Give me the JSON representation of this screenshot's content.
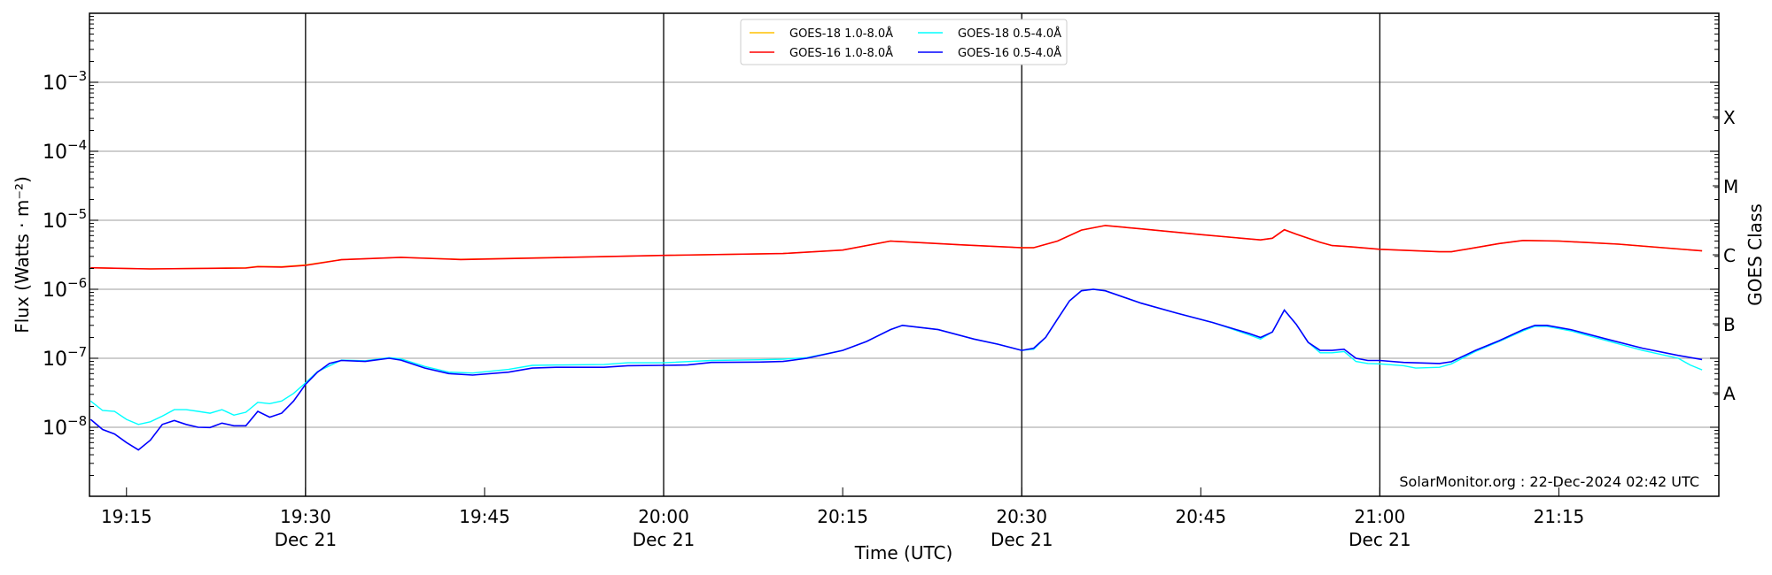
{
  "chart_data": {
    "type": "line",
    "title": "",
    "xlabel": "Time (UTC)",
    "ylabel": "Flux (Watts · m⁻²)",
    "ylabel_right": "GOES Class",
    "ylim": [
      1e-09,
      0.01
    ],
    "yscale": "log",
    "xlim": [
      "19:12",
      "21:28"
    ],
    "grid": "horizontal at decades",
    "legend_position": "top-center",
    "y_tick_labels": [
      {
        "value": 1e-08,
        "base": "10",
        "exp": "−8"
      },
      {
        "value": 1e-07,
        "base": "10",
        "exp": "−7"
      },
      {
        "value": 1e-06,
        "base": "10",
        "exp": "−6"
      },
      {
        "value": 1e-05,
        "base": "10",
        "exp": "−5"
      },
      {
        "value": 0.0001,
        "base": "10",
        "exp": "−4"
      },
      {
        "value": 0.001,
        "base": "10",
        "exp": "−3"
      }
    ],
    "x_ticks": [
      {
        "time": "19:15",
        "label": "19:15",
        "date": ""
      },
      {
        "time": "19:30",
        "label": "19:30",
        "date": "Dec 21"
      },
      {
        "time": "19:45",
        "label": "19:45",
        "date": ""
      },
      {
        "time": "20:00",
        "label": "20:00",
        "date": "Dec 21"
      },
      {
        "time": "20:15",
        "label": "20:15",
        "date": ""
      },
      {
        "time": "20:30",
        "label": "20:30",
        "date": "Dec 21"
      },
      {
        "time": "20:45",
        "label": "20:45",
        "date": ""
      },
      {
        "time": "21:00",
        "label": "21:00",
        "date": "Dec 21"
      },
      {
        "time": "21:15",
        "label": "21:15",
        "date": ""
      }
    ],
    "class_labels": [
      {
        "label": "X",
        "value": 0.000316
      },
      {
        "label": "M",
        "value": 3.16e-05
      },
      {
        "label": "C",
        "value": 3.16e-06
      },
      {
        "label": "B",
        "value": 3.16e-07
      },
      {
        "label": "A",
        "value": 3.16e-08
      }
    ],
    "series": [
      {
        "name": "GOES-18 1.0-8.0Å",
        "color": "#ffc000",
        "points": [
          [
            "19:12",
            2.05e-06
          ],
          [
            "19:17",
            1.98e-06
          ],
          [
            "19:25",
            2.05e-06
          ],
          [
            "19:26",
            2.15e-06
          ],
          [
            "19:28",
            2.12e-06
          ],
          [
            "19:30",
            2.25e-06
          ],
          [
            "19:33",
            2.7e-06
          ],
          [
            "19:38",
            2.9e-06
          ],
          [
            "19:43",
            2.72e-06
          ],
          [
            "20:00",
            3.1e-06
          ],
          [
            "20:10",
            3.3e-06
          ],
          [
            "20:15",
            3.7e-06
          ],
          [
            "20:19",
            5e-06
          ],
          [
            "20:25",
            4.4e-06
          ],
          [
            "20:30",
            4e-06
          ],
          [
            "20:31",
            4e-06
          ],
          [
            "20:33",
            5e-06
          ],
          [
            "20:35",
            7.2e-06
          ],
          [
            "20:37",
            8.4e-06
          ],
          [
            "20:40",
            7.5e-06
          ],
          [
            "20:45",
            6.2e-06
          ],
          [
            "20:50",
            5.2e-06
          ],
          [
            "20:51",
            5.5e-06
          ],
          [
            "20:52",
            7.3e-06
          ],
          [
            "20:53",
            6.3e-06
          ],
          [
            "20:55",
            4.8e-06
          ],
          [
            "20:56",
            4.3e-06
          ],
          [
            "20:57",
            4.2e-06
          ],
          [
            "21:00",
            3.8e-06
          ],
          [
            "21:05",
            3.5e-06
          ],
          [
            "21:06",
            3.5e-06
          ],
          [
            "21:10",
            4.6e-06
          ],
          [
            "21:12",
            5.1e-06
          ],
          [
            "21:15",
            5e-06
          ],
          [
            "21:20",
            4.5e-06
          ],
          [
            "21:27",
            3.6e-06
          ]
        ]
      },
      {
        "name": "GOES-16 1.0-8.0Å",
        "color": "#ff0000",
        "points": [
          [
            "19:12",
            2.05e-06
          ],
          [
            "19:17",
            1.97e-06
          ],
          [
            "19:25",
            2.03e-06
          ],
          [
            "19:26",
            2.12e-06
          ],
          [
            "19:28",
            2.1e-06
          ],
          [
            "19:30",
            2.22e-06
          ],
          [
            "19:33",
            2.68e-06
          ],
          [
            "19:38",
            2.9e-06
          ],
          [
            "19:43",
            2.7e-06
          ],
          [
            "20:00",
            3.1e-06
          ],
          [
            "20:10",
            3.3e-06
          ],
          [
            "20:15",
            3.7e-06
          ],
          [
            "20:19",
            5e-06
          ],
          [
            "20:25",
            4.4e-06
          ],
          [
            "20:30",
            4e-06
          ],
          [
            "20:31",
            4e-06
          ],
          [
            "20:33",
            5e-06
          ],
          [
            "20:35",
            7.2e-06
          ],
          [
            "20:37",
            8.4e-06
          ],
          [
            "20:40",
            7.5e-06
          ],
          [
            "20:45",
            6.2e-06
          ],
          [
            "20:50",
            5.2e-06
          ],
          [
            "20:51",
            5.5e-06
          ],
          [
            "20:52",
            7.3e-06
          ],
          [
            "20:53",
            6.3e-06
          ],
          [
            "20:55",
            4.8e-06
          ],
          [
            "20:56",
            4.3e-06
          ],
          [
            "20:57",
            4.2e-06
          ],
          [
            "21:00",
            3.8e-06
          ],
          [
            "21:05",
            3.5e-06
          ],
          [
            "21:06",
            3.5e-06
          ],
          [
            "21:10",
            4.6e-06
          ],
          [
            "21:12",
            5.1e-06
          ],
          [
            "21:15",
            5e-06
          ],
          [
            "21:20",
            4.5e-06
          ],
          [
            "21:27",
            3.6e-06
          ]
        ]
      },
      {
        "name": "GOES-18 0.5-4.0Å",
        "color": "#00ffff",
        "points": [
          [
            "19:12",
            2.4e-08
          ],
          [
            "19:13",
            1.75e-08
          ],
          [
            "19:14",
            1.7e-08
          ],
          [
            "19:15",
            1.3e-08
          ],
          [
            "19:16",
            1.1e-08
          ],
          [
            "19:17",
            1.2e-08
          ],
          [
            "19:18",
            1.45e-08
          ],
          [
            "19:19",
            1.8e-08
          ],
          [
            "19:20",
            1.8e-08
          ],
          [
            "19:21",
            1.7e-08
          ],
          [
            "19:22",
            1.6e-08
          ],
          [
            "19:23",
            1.8e-08
          ],
          [
            "19:24",
            1.5e-08
          ],
          [
            "19:25",
            1.65e-08
          ],
          [
            "19:26",
            2.3e-08
          ],
          [
            "19:27",
            2.2e-08
          ],
          [
            "19:28",
            2.4e-08
          ],
          [
            "19:29",
            3.1e-08
          ],
          [
            "19:30",
            4.4e-08
          ],
          [
            "19:31",
            6.4e-08
          ],
          [
            "19:33",
            9.4e-08
          ],
          [
            "19:35",
            9.2e-08
          ],
          [
            "19:37",
            1.02e-07
          ],
          [
            "19:38",
            9.8e-08
          ],
          [
            "19:40",
            7.6e-08
          ],
          [
            "19:42",
            6.3e-08
          ],
          [
            "19:44",
            6.1e-08
          ],
          [
            "19:47",
            6.9e-08
          ],
          [
            "19:49",
            7.9e-08
          ],
          [
            "19:51",
            8e-08
          ],
          [
            "19:55",
            8.1e-08
          ],
          [
            "19:57",
            8.6e-08
          ],
          [
            "20:00",
            8.6e-08
          ],
          [
            "20:04",
            9.3e-08
          ],
          [
            "20:08",
            9.5e-08
          ],
          [
            "20:10",
            9.7e-08
          ],
          [
            "20:12",
            1.02e-07
          ],
          [
            "20:15",
            1.3e-07
          ],
          [
            "20:17",
            1.75e-07
          ],
          [
            "20:19",
            2.6e-07
          ],
          [
            "20:20",
            3e-07
          ],
          [
            "20:23",
            2.6e-07
          ],
          [
            "20:26",
            1.9e-07
          ],
          [
            "20:28",
            1.6e-07
          ],
          [
            "20:30",
            1.3e-07
          ],
          [
            "20:31",
            1.35e-07
          ],
          [
            "20:32",
            2e-07
          ],
          [
            "20:33",
            3.7e-07
          ],
          [
            "20:34",
            6.8e-07
          ],
          [
            "20:35",
            9.5e-07
          ],
          [
            "20:36",
            1e-06
          ],
          [
            "20:37",
            9.5e-07
          ],
          [
            "20:40",
            6.3e-07
          ],
          [
            "20:43",
            4.5e-07
          ],
          [
            "20:46",
            3.3e-07
          ],
          [
            "20:49",
            2.2e-07
          ],
          [
            "20:50",
            1.9e-07
          ],
          [
            "20:51",
            2.4e-07
          ],
          [
            "20:52",
            5e-07
          ],
          [
            "20:53",
            3.1e-07
          ],
          [
            "20:54",
            1.7e-07
          ],
          [
            "20:55",
            1.2e-07
          ],
          [
            "20:56",
            1.2e-07
          ],
          [
            "20:57",
            1.25e-07
          ],
          [
            "20:58",
            9e-08
          ],
          [
            "20:59",
            8.4e-08
          ],
          [
            "21:00",
            8.3e-08
          ],
          [
            "21:02",
            7.8e-08
          ],
          [
            "21:03",
            7.2e-08
          ],
          [
            "21:05",
            7.4e-08
          ],
          [
            "21:06",
            8.3e-08
          ],
          [
            "21:08",
            1.25e-07
          ],
          [
            "21:10",
            1.75e-07
          ],
          [
            "21:12",
            2.5e-07
          ],
          [
            "21:13",
            2.9e-07
          ],
          [
            "21:14",
            2.9e-07
          ],
          [
            "21:16",
            2.5e-07
          ],
          [
            "21:19",
            1.8e-07
          ],
          [
            "21:22",
            1.3e-07
          ],
          [
            "21:25",
            1e-07
          ],
          [
            "21:26",
            8e-08
          ],
          [
            "21:27",
            6.8e-08
          ]
        ]
      },
      {
        "name": "GOES-16 0.5-4.0Å",
        "color": "#0000ff",
        "points": [
          [
            "19:12",
            1.3e-08
          ],
          [
            "19:13",
            9.3e-09
          ],
          [
            "19:14",
            8e-09
          ],
          [
            "19:15",
            6e-09
          ],
          [
            "19:16",
            4.7e-09
          ],
          [
            "19:17",
            6.5e-09
          ],
          [
            "19:18",
            1.1e-08
          ],
          [
            "19:19",
            1.25e-08
          ],
          [
            "19:20",
            1.1e-08
          ],
          [
            "19:21",
            1e-08
          ],
          [
            "19:22",
            9.9e-09
          ],
          [
            "19:23",
            1.15e-08
          ],
          [
            "19:24",
            1.05e-08
          ],
          [
            "19:25",
            1.05e-08
          ],
          [
            "19:26",
            1.7e-08
          ],
          [
            "19:27",
            1.4e-08
          ],
          [
            "19:28",
            1.6e-08
          ],
          [
            "19:29",
            2.4e-08
          ],
          [
            "19:30",
            4.2e-08
          ],
          [
            "19:31",
            6.3e-08
          ],
          [
            "19:32",
            8.4e-08
          ],
          [
            "19:33",
            9.3e-08
          ],
          [
            "19:35",
            9e-08
          ],
          [
            "19:37",
            1e-07
          ],
          [
            "19:38",
            9.4e-08
          ],
          [
            "19:40",
            7.2e-08
          ],
          [
            "19:42",
            6e-08
          ],
          [
            "19:44",
            5.7e-08
          ],
          [
            "19:47",
            6.3e-08
          ],
          [
            "19:49",
            7.2e-08
          ],
          [
            "19:51",
            7.4e-08
          ],
          [
            "19:55",
            7.4e-08
          ],
          [
            "19:57",
            7.8e-08
          ],
          [
            "20:00",
            7.9e-08
          ],
          [
            "20:02",
            8e-08
          ],
          [
            "20:04",
            8.7e-08
          ],
          [
            "20:08",
            8.8e-08
          ],
          [
            "20:10",
            9e-08
          ],
          [
            "20:12",
            1e-07
          ],
          [
            "20:15",
            1.3e-07
          ],
          [
            "20:17",
            1.75e-07
          ],
          [
            "20:19",
            2.6e-07
          ],
          [
            "20:20",
            3e-07
          ],
          [
            "20:23",
            2.6e-07
          ],
          [
            "20:26",
            1.9e-07
          ],
          [
            "20:28",
            1.6e-07
          ],
          [
            "20:30",
            1.3e-07
          ],
          [
            "20:31",
            1.4e-07
          ],
          [
            "20:32",
            2e-07
          ],
          [
            "20:33",
            3.7e-07
          ],
          [
            "20:34",
            6.8e-07
          ],
          [
            "20:35",
            9.5e-07
          ],
          [
            "20:36",
            1e-06
          ],
          [
            "20:37",
            9.5e-07
          ],
          [
            "20:40",
            6.3e-07
          ],
          [
            "20:43",
            4.5e-07
          ],
          [
            "20:46",
            3.3e-07
          ],
          [
            "20:49",
            2.3e-07
          ],
          [
            "20:50",
            2e-07
          ],
          [
            "20:51",
            2.4e-07
          ],
          [
            "20:52",
            5e-07
          ],
          [
            "20:53",
            3.1e-07
          ],
          [
            "20:54",
            1.7e-07
          ],
          [
            "20:55",
            1.3e-07
          ],
          [
            "20:56",
            1.3e-07
          ],
          [
            "20:57",
            1.35e-07
          ],
          [
            "20:58",
            1e-07
          ],
          [
            "20:59",
            9.3e-08
          ],
          [
            "21:00",
            9.3e-08
          ],
          [
            "21:02",
            8.7e-08
          ],
          [
            "21:05",
            8.4e-08
          ],
          [
            "21:06",
            8.9e-08
          ],
          [
            "21:08",
            1.3e-07
          ],
          [
            "21:10",
            1.8e-07
          ],
          [
            "21:12",
            2.6e-07
          ],
          [
            "21:13",
            3e-07
          ],
          [
            "21:14",
            3e-07
          ],
          [
            "21:16",
            2.6e-07
          ],
          [
            "21:19",
            1.9e-07
          ],
          [
            "21:22",
            1.4e-07
          ],
          [
            "21:25",
            1.1e-07
          ],
          [
            "21:27",
            9.6e-08
          ]
        ]
      }
    ],
    "vertical_lines": [
      "19:30",
      "20:00",
      "20:30",
      "21:00"
    ],
    "annotation": "SolarMonitor.org : 22-Dec-2024 02:42 UTC"
  }
}
